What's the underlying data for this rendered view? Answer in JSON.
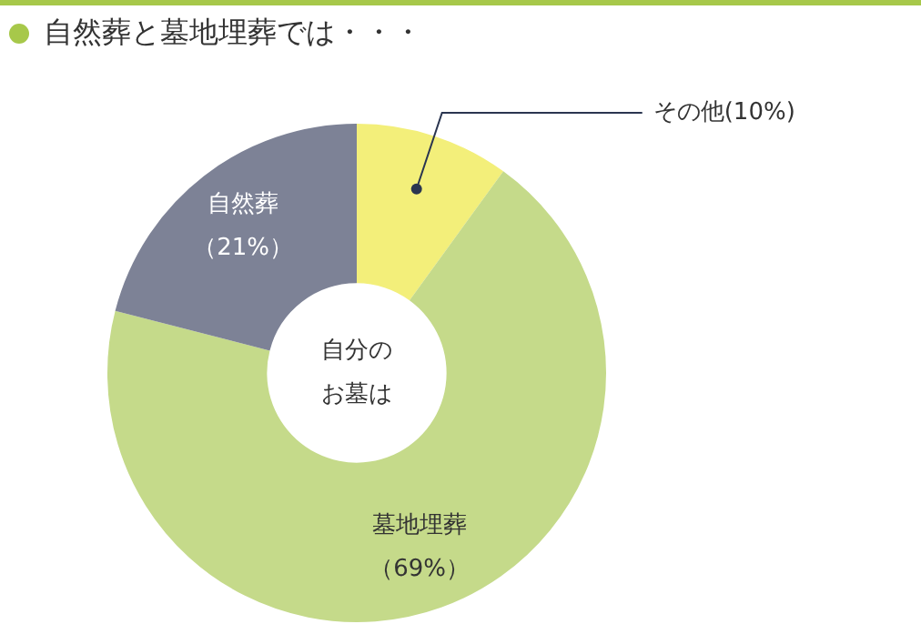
{
  "chart_data": {
    "type": "donut",
    "title": "自然葬と墓地埋葬では・・・",
    "categories": [
      "その他",
      "墓地埋葬",
      "自然葬"
    ],
    "values": [
      10,
      69,
      21
    ],
    "colors": [
      "#f3ef7a",
      "#c5da8a",
      "#7d8296"
    ],
    "value_labels": [
      "(10%)",
      "（69%）",
      "（21%）"
    ],
    "annotations": [
      "自分の",
      "お墓は"
    ],
    "legend": false
  }
}
